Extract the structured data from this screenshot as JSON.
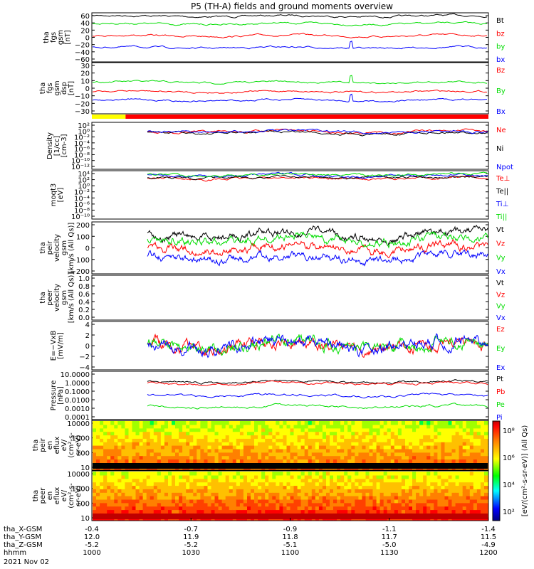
{
  "title": "P5 (TH-A) fields and ground moments overview",
  "colors": {
    "black": "#000000",
    "red": "#ff0000",
    "green": "#00dd00",
    "blue": "#0000ff",
    "yellow": "#ffff00"
  },
  "chart_data": [
    {
      "type": "line",
      "ylabel": [
        "tha",
        "fgs",
        "gsm",
        "[nT]"
      ],
      "ylim": [
        -60,
        60
      ],
      "yticks": [
        "60",
        "40",
        "20",
        "0",
        "−20",
        "−40",
        "−60"
      ],
      "series": [
        {
          "name": "Bt",
          "color": "black",
          "level": 52
        },
        {
          "name": "bz",
          "color": "red",
          "level": 4
        },
        {
          "name": "by",
          "color": "green",
          "level": 33
        },
        {
          "name": "bx",
          "color": "blue",
          "level": -25
        }
      ]
    },
    {
      "type": "line",
      "ylabel": [
        "tha",
        "fgs",
        "gsm",
        "dsp",
        "[nT]"
      ],
      "ylim": [
        -30,
        30
      ],
      "yticks": [
        "30",
        "20",
        "10",
        "0",
        "−10",
        "−20",
        "−30"
      ],
      "series": [
        {
          "name": "Bz",
          "color": "red",
          "level": -4
        },
        {
          "name": "By",
          "color": "green",
          "level": 7
        },
        {
          "name": "Bx",
          "color": "blue",
          "level": -14
        }
      ]
    },
    {
      "type": "line",
      "ylabel": [
        "Density",
        "[1/cc]",
        "[cm-3]"
      ],
      "ylim": "log",
      "yticks": [
        "10²",
        "10⁰",
        "10⁻²",
        "10⁻⁴",
        "10⁻⁶",
        "10⁻⁸",
        "10⁻¹⁰",
        "10⁻¹²"
      ],
      "series": [
        {
          "name": "Ne",
          "color": "red"
        },
        {
          "name": "Ni",
          "color": "black"
        },
        {
          "name": "Npot",
          "color": "blue"
        }
      ]
    },
    {
      "type": "line",
      "ylabel": [
        "moqt3",
        "[eV]"
      ],
      "ylim": "log",
      "yticks": [
        "10⁴",
        "10²",
        "10⁰",
        "10⁻²",
        "10⁻⁴",
        "10⁻⁶",
        "10⁻⁸",
        "10⁻¹⁰"
      ],
      "series": [
        {
          "name": "Te⊥",
          "color": "red"
        },
        {
          "name": "Te||",
          "color": "black"
        },
        {
          "name": "Ti⊥",
          "color": "blue"
        },
        {
          "name": "Ti||",
          "color": "green"
        }
      ]
    },
    {
      "type": "line",
      "ylabel": [
        "tha",
        "peir",
        "velocity",
        "gsm",
        "[km/s (All Qs)]"
      ],
      "ylim": [
        -200,
        200
      ],
      "yticks": [
        "200",
        "100",
        "0",
        "−100",
        "−200"
      ],
      "series": [
        {
          "name": "Vt",
          "color": "black",
          "level": 100
        },
        {
          "name": "Vz",
          "color": "red",
          "level": 0
        },
        {
          "name": "Vy",
          "color": "green",
          "level": 60
        },
        {
          "name": "Vx",
          "color": "blue",
          "level": -70
        }
      ]
    },
    {
      "type": "line",
      "ylabel": [
        "tha",
        "peer",
        "velocity",
        "gsm",
        "[km/s (All Qs)]"
      ],
      "ylim": [
        0,
        1
      ],
      "yticks": [
        "1.0",
        "0.8",
        "0.6",
        "0.4",
        "0.2",
        "0.0"
      ],
      "series": [
        {
          "name": "Vt",
          "color": "black"
        },
        {
          "name": "Vz",
          "color": "red"
        },
        {
          "name": "Vy",
          "color": "green"
        },
        {
          "name": "Vx",
          "color": "blue"
        }
      ]
    },
    {
      "type": "line",
      "ylabel": [
        "E=−VxB",
        "[mV/m]"
      ],
      "ylim": [
        -4,
        4
      ],
      "yticks": [
        "4",
        "2",
        "0",
        "−2",
        "−4"
      ],
      "series": [
        {
          "name": "Ez",
          "color": "red",
          "level": 0
        },
        {
          "name": "Ey",
          "color": "green",
          "level": 0
        },
        {
          "name": "Ex",
          "color": "blue",
          "level": 0
        }
      ]
    },
    {
      "type": "line",
      "ylabel": [
        "Pressure",
        "[nPa]"
      ],
      "ylim": "log",
      "yticks": [
        "10.0000",
        "1.0000",
        "0.1000",
        "0.0100",
        "0.0010",
        "0.0001"
      ],
      "series": [
        {
          "name": "Pt",
          "color": "black"
        },
        {
          "name": "Pb",
          "color": "red"
        },
        {
          "name": "Pe",
          "color": "green"
        },
        {
          "name": "Pi",
          "color": "blue"
        }
      ]
    },
    {
      "type": "heatmap",
      "ylabel": [
        "tha",
        "peir",
        "en",
        "eflux",
        "eV/",
        "(cm²-s-",
        "sr-eV)"
      ],
      "yticks": [
        "10000",
        "1000",
        "100",
        "10"
      ]
    },
    {
      "type": "heatmap",
      "ylabel": [
        "tha",
        "peer",
        "en",
        "eflux",
        "eV/",
        "(cm²-s-",
        "sr-eV)"
      ],
      "yticks": [
        "10000",
        "1000",
        "100",
        "10"
      ]
    }
  ],
  "colorbar": {
    "label": "[eV/(cm²-s-sr-eV)] (All Qs)",
    "ticks": [
      "10⁸",
      "10⁶",
      "10⁴",
      "10²"
    ]
  },
  "xaxis": {
    "rows": [
      {
        "label": "tha_X-GSM",
        "values": [
          "-0.4",
          "-0.7",
          "-0.9",
          "-1.1",
          "-1.4"
        ]
      },
      {
        "label": "tha_Y-GSM",
        "values": [
          "12.0",
          "11.9",
          "11.8",
          "11.7",
          "11.5"
        ]
      },
      {
        "label": "tha_Z-GSM",
        "values": [
          "-5.2",
          "-5.2",
          "-5.1",
          "-5.0",
          "-4.9"
        ]
      },
      {
        "label": "hhmm",
        "values": [
          "1000",
          "1030",
          "1100",
          "1130",
          "1200"
        ]
      }
    ],
    "date": "2021 Nov 02"
  }
}
